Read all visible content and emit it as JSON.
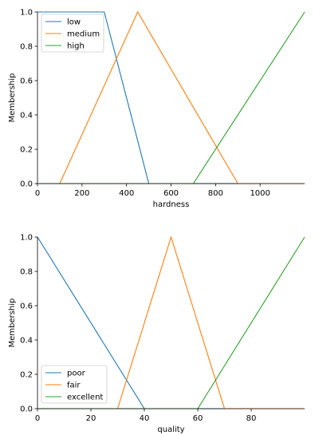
{
  "chart_data": [
    {
      "type": "line",
      "xlabel": "hardness",
      "ylabel": "Membership",
      "xlim": [
        0,
        1200
      ],
      "ylim": [
        0,
        1.0
      ],
      "xticks": [
        0,
        200,
        400,
        600,
        800,
        1000
      ],
      "yticks": [
        0.0,
        0.2,
        0.4,
        0.6,
        0.8,
        1.0
      ],
      "xtick_labels": [
        "0",
        "200",
        "400",
        "600",
        "800",
        "1000"
      ],
      "ytick_labels": [
        "0.0",
        "0.2",
        "0.4",
        "0.6",
        "0.8",
        "1.0"
      ],
      "grid": false,
      "legend": "top-left",
      "series": [
        {
          "name": "low",
          "color": "#1f77b4",
          "x": [
            0,
            300,
            500,
            1200
          ],
          "y": [
            1,
            1,
            0,
            0
          ]
        },
        {
          "name": "medium",
          "color": "#ff7f0e",
          "x": [
            0,
            100,
            450,
            900,
            1200
          ],
          "y": [
            0,
            0,
            1,
            0,
            0
          ]
        },
        {
          "name": "high",
          "color": "#2ca02c",
          "x": [
            0,
            700,
            1200
          ],
          "y": [
            0,
            0,
            1
          ]
        }
      ]
    },
    {
      "type": "line",
      "xlabel": "quality",
      "ylabel": "Membership",
      "xlim": [
        0,
        100
      ],
      "ylim": [
        0,
        1.0
      ],
      "xticks": [
        0,
        20,
        40,
        60,
        80
      ],
      "yticks": [
        0.0,
        0.2,
        0.4,
        0.6,
        0.8,
        1.0
      ],
      "xtick_labels": [
        "0",
        "20",
        "40",
        "60",
        "80"
      ],
      "ytick_labels": [
        "0.0",
        "0.2",
        "0.4",
        "0.6",
        "0.8",
        "1.0"
      ],
      "grid": false,
      "legend": "bottom-left",
      "series": [
        {
          "name": "poor",
          "color": "#1f77b4",
          "x": [
            0,
            40,
            100
          ],
          "y": [
            1,
            0,
            0
          ]
        },
        {
          "name": "fair",
          "color": "#ff7f0e",
          "x": [
            0,
            30,
            50,
            70,
            100
          ],
          "y": [
            0,
            0,
            1,
            0,
            0
          ]
        },
        {
          "name": "excellent",
          "color": "#2ca02c",
          "x": [
            0,
            60,
            100
          ],
          "y": [
            0,
            0,
            1
          ]
        }
      ]
    }
  ]
}
